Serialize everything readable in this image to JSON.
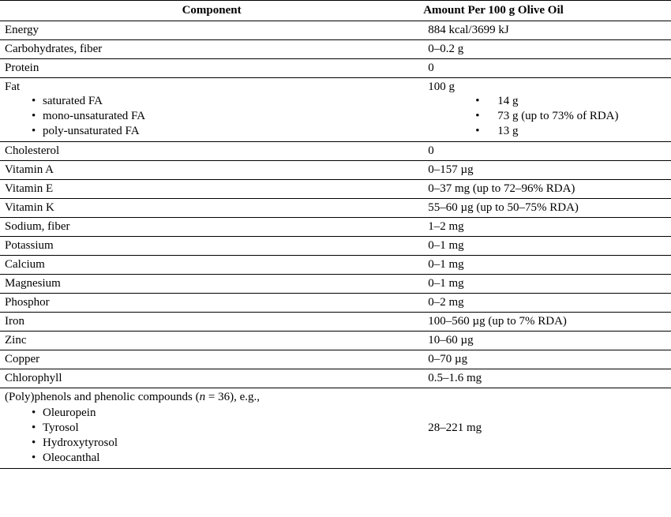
{
  "header": {
    "component": "Component",
    "amount": "Amount Per 100 g Olive Oil"
  },
  "rows": [
    {
      "component": "Energy",
      "amount": "884 kcal/3699 kJ"
    },
    {
      "component": "Carbohydrates, fiber",
      "amount": "0–0.2 g"
    },
    {
      "component": "Protein",
      "amount": "0"
    }
  ],
  "fat": {
    "label": "Fat",
    "amount": "100 g",
    "subs": [
      {
        "label": "saturated FA",
        "amount": "14 g"
      },
      {
        "label": "mono-unsaturated FA",
        "amount": "73 g (up to 73% of RDA)"
      },
      {
        "label": "poly-unsaturated FA",
        "amount": "13 g"
      }
    ]
  },
  "rows2": [
    {
      "component": "Cholesterol",
      "amount": "0"
    },
    {
      "component": "Vitamin A",
      "amount": "0–157 µg"
    },
    {
      "component": "Vitamin E",
      "amount": "0–37 mg (up to 72–96% RDA)"
    },
    {
      "component": "Vitamin K",
      "amount": "55–60 µg (up to 50–75% RDA)"
    },
    {
      "component": "Sodium, fiber",
      "amount": "1–2 mg"
    },
    {
      "component": "Potassium",
      "amount": "0–1 mg"
    },
    {
      "component": "Calcium",
      "amount": "0–1 mg"
    },
    {
      "component": "Magnesium",
      "amount": "0–1 mg"
    },
    {
      "component": "Phosphor",
      "amount": "0–2 mg"
    },
    {
      "component": "Iron",
      "amount": "100–560 µg (up to 7% RDA)"
    },
    {
      "component": "Zinc",
      "amount": "10–60 µg"
    },
    {
      "component": "Copper",
      "amount": "0–70 µg"
    },
    {
      "component": "Chlorophyll",
      "amount": "0.5–1.6 mg"
    }
  ],
  "poly": {
    "label_pre": "(Poly)phenols and phenolic compounds (",
    "n": "n",
    "label_post": " = 36), e.g.,",
    "amount": "28–221 mg",
    "subs": [
      "Oleuropein",
      "Tyrosol",
      "Hydroxytyrosol",
      "Oleocanthal"
    ]
  }
}
